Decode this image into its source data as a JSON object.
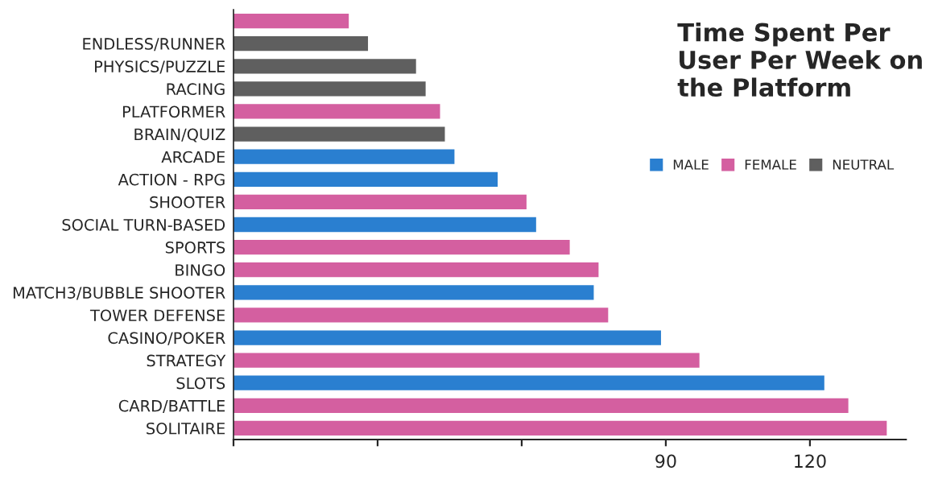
{
  "chart_data": {
    "type": "bar",
    "orientation": "horizontal",
    "title": "Time Spent Per User Per Week on the Platform",
    "categories": [
      null,
      "ENDLESS/RUNNER",
      "PHYSICS/PUZZLE",
      "RACING",
      "PLATFORMER",
      "BRAIN/QUIZ",
      "ARCADE",
      "ACTION - RPG",
      "SHOOTER",
      "SOCIAL TURN-BASED",
      "SPORTS",
      "BINGO",
      "MATCH3/BUBBLE SHOOTER",
      "TOWER DEFENSE",
      "CASINO/POKER",
      "STRATEGY",
      "SLOTS",
      "CARD/BATTLE",
      "SOLITAIRE"
    ],
    "series": [
      {
        "name": "MALE",
        "color": "#2a7fd0",
        "values": [
          null,
          null,
          null,
          null,
          null,
          null,
          46,
          55,
          null,
          63,
          null,
          null,
          75,
          null,
          89,
          null,
          123,
          null,
          null
        ]
      },
      {
        "name": "FEMALE",
        "color": "#d45fa0",
        "values": [
          24,
          null,
          null,
          null,
          43,
          null,
          null,
          null,
          61,
          null,
          70,
          76,
          null,
          78,
          null,
          97,
          null,
          128,
          136
        ]
      },
      {
        "name": "NEUTRAL",
        "color": "#5f5f5f",
        "values": [
          null,
          28,
          38,
          40,
          null,
          44,
          null,
          null,
          null,
          null,
          null,
          null,
          null,
          null,
          null,
          null,
          null,
          null,
          null
        ]
      }
    ],
    "xlim": [
      0,
      140
    ],
    "xticks": [
      {
        "value": 0,
        "label": null
      },
      {
        "value": 30,
        "label": null
      },
      {
        "value": 60,
        "label": null
      },
      90,
      120
    ],
    "legend": "top right",
    "grid": false
  }
}
